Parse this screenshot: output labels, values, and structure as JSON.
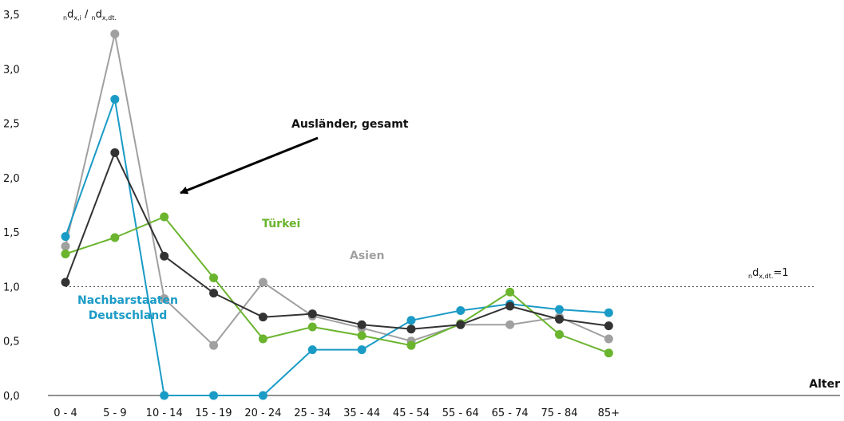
{
  "chart_data": {
    "type": "line",
    "categories": [
      "0 - 4",
      "5 - 9",
      "10 - 14",
      "15 - 19",
      "20 - 24",
      "25 - 34",
      "35 - 44",
      "45 - 54",
      "55 - 64",
      "65 - 74",
      "75 - 84",
      "85+"
    ],
    "y_ticks": [
      "0,0",
      "0,5",
      "1,0",
      "1,5",
      "2,0",
      "2,5",
      "3,0",
      "3,5"
    ],
    "ylim": [
      0,
      3.5
    ],
    "xlabel": "Alter",
    "ylabel": {
      "sub1": "n",
      "main1": "d",
      "sup1": "x,i",
      "slash": " / ",
      "sub2": "n",
      "main2": "d",
      "sup2": "x,dt."
    },
    "reference": {
      "value": 1.0,
      "sub": "n",
      "main": "d",
      "sup": "x,dt.",
      "eq": "=1"
    },
    "annotation": "Ausländer, gesamt",
    "series": [
      {
        "key": "asien",
        "label": "Asien",
        "color": "#a0a0a0",
        "values": [
          1.37,
          3.32,
          0.89,
          0.46,
          1.04,
          0.73,
          0.62,
          0.5,
          0.65,
          0.65,
          0.72,
          0.52
        ]
      },
      {
        "key": "nachbar",
        "label": [
          "Nachbarstaaten",
          "Deutschland"
        ],
        "color": "#1a9bc6",
        "values": [
          1.46,
          2.72,
          0.0,
          0.0,
          0.0,
          0.42,
          0.42,
          0.69,
          0.78,
          0.84,
          0.79,
          0.76
        ]
      },
      {
        "key": "tuerkei",
        "label": "Türkei",
        "color": "#6ab42e",
        "values": [
          1.3,
          1.45,
          1.64,
          1.08,
          0.52,
          0.63,
          0.55,
          0.46,
          0.66,
          0.95,
          0.56,
          0.39
        ]
      },
      {
        "key": "gesamt",
        "label": "",
        "color": "#333333",
        "values": [
          1.04,
          2.23,
          1.28,
          0.94,
          0.72,
          0.75,
          0.65,
          0.61,
          0.65,
          0.82,
          0.7,
          0.64
        ]
      }
    ]
  }
}
